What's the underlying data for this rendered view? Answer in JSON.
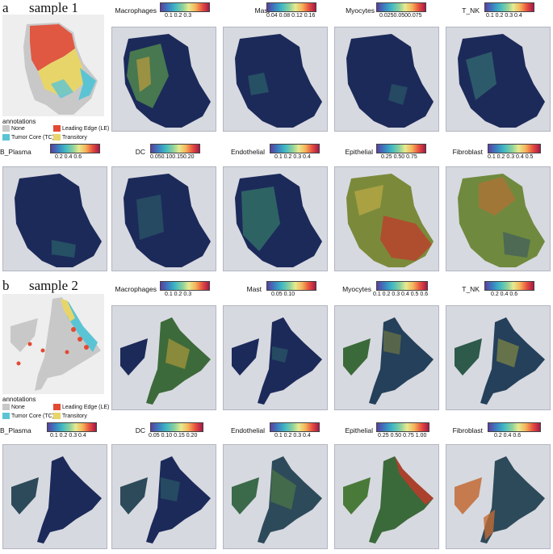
{
  "panel_a": {
    "letter": "a",
    "sample_title": "sample 1",
    "annotations": {
      "title": "annotations",
      "items": [
        {
          "label": "None",
          "color": "#c8c8c8"
        },
        {
          "label": "Leading Edge (LE)",
          "color": "#e24a33"
        },
        {
          "label": "Tumor Core (TC)",
          "color": "#5bc4d4"
        },
        {
          "label": "Transitory",
          "color": "#e8d56a"
        }
      ]
    },
    "cell_types": [
      {
        "name": "Macrophages",
        "ticks": "0.1    0.2    0.3"
      },
      {
        "name": "Mast",
        "ticks": "0.04 0.08 0.12 0.16"
      },
      {
        "name": "Myocytes",
        "ticks": "0.0250.0500.075"
      },
      {
        "name": "T_NK",
        "ticks": "0.1 0.2 0.3 0.4"
      },
      {
        "name": "B_Plasma",
        "ticks": "0.2    0.4    0.6"
      },
      {
        "name": "DC",
        "ticks": "0.050.100.150.20"
      },
      {
        "name": "Endothelial",
        "ticks": "0.1 0.2 0.3 0.4"
      },
      {
        "name": "Epithelial",
        "ticks": "0.25  0.50  0.75"
      },
      {
        "name": "Fibroblast",
        "ticks": "0.1 0.2 0.3 0.4 0.5"
      }
    ]
  },
  "panel_b": {
    "letter": "b",
    "sample_title": "sample 2",
    "annotations": {
      "title": "annotations",
      "items": [
        {
          "label": "None",
          "color": "#c8c8c8"
        },
        {
          "label": "Leading Edge (LE)",
          "color": "#e24a33"
        },
        {
          "label": "Tumor Core (TC)",
          "color": "#5bc4d4"
        },
        {
          "label": "Transitory",
          "color": "#e8d56a"
        }
      ]
    },
    "cell_types": [
      {
        "name": "Macrophages",
        "ticks": "0.1    0.2    0.3"
      },
      {
        "name": "Mast",
        "ticks": "0.05    0.10"
      },
      {
        "name": "Myocytes",
        "ticks": "0.1 0.2 0.3 0.4 0.5 0.6"
      },
      {
        "name": "T_NK",
        "ticks": "0.2   0.4   0.6"
      },
      {
        "name": "B_Plasma",
        "ticks": "0.1 0.2 0.3 0.4"
      },
      {
        "name": "DC",
        "ticks": "0.05 0.10 0.15 0.20"
      },
      {
        "name": "Endothelial",
        "ticks": "0.1 0.2 0.3 0.4"
      },
      {
        "name": "Epithelial",
        "ticks": "0.25 0.50 0.75 1.00"
      },
      {
        "name": "Fibroblast",
        "ticks": "0.2    0.4    0.6"
      }
    ]
  },
  "colors": {
    "tissue_dark": "#1c2a5a",
    "background": "#d7d9e0"
  }
}
